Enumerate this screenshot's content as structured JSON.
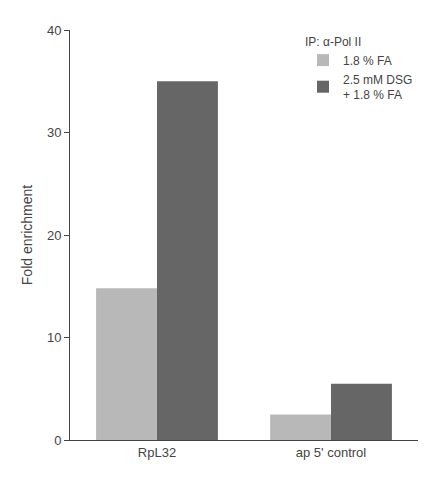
{
  "chart_data": {
    "type": "bar",
    "categories": [
      "RpL32",
      "ap 5' control"
    ],
    "series": [
      {
        "name": "1.8 % FA",
        "color": "#b8b8b8",
        "values": [
          14.8,
          2.5
        ]
      },
      {
        "name": "2.5 mM DSG\n+ 1.8 % FA",
        "color": "#666666",
        "values": [
          35.0,
          5.5
        ]
      }
    ],
    "ylabel": "Fold enrichment",
    "legend_title": "IP: α-Pol II",
    "ylim": [
      0,
      40
    ],
    "yticks": [
      0,
      10,
      20,
      30,
      40
    ],
    "grid": false,
    "legend": "upper right"
  }
}
